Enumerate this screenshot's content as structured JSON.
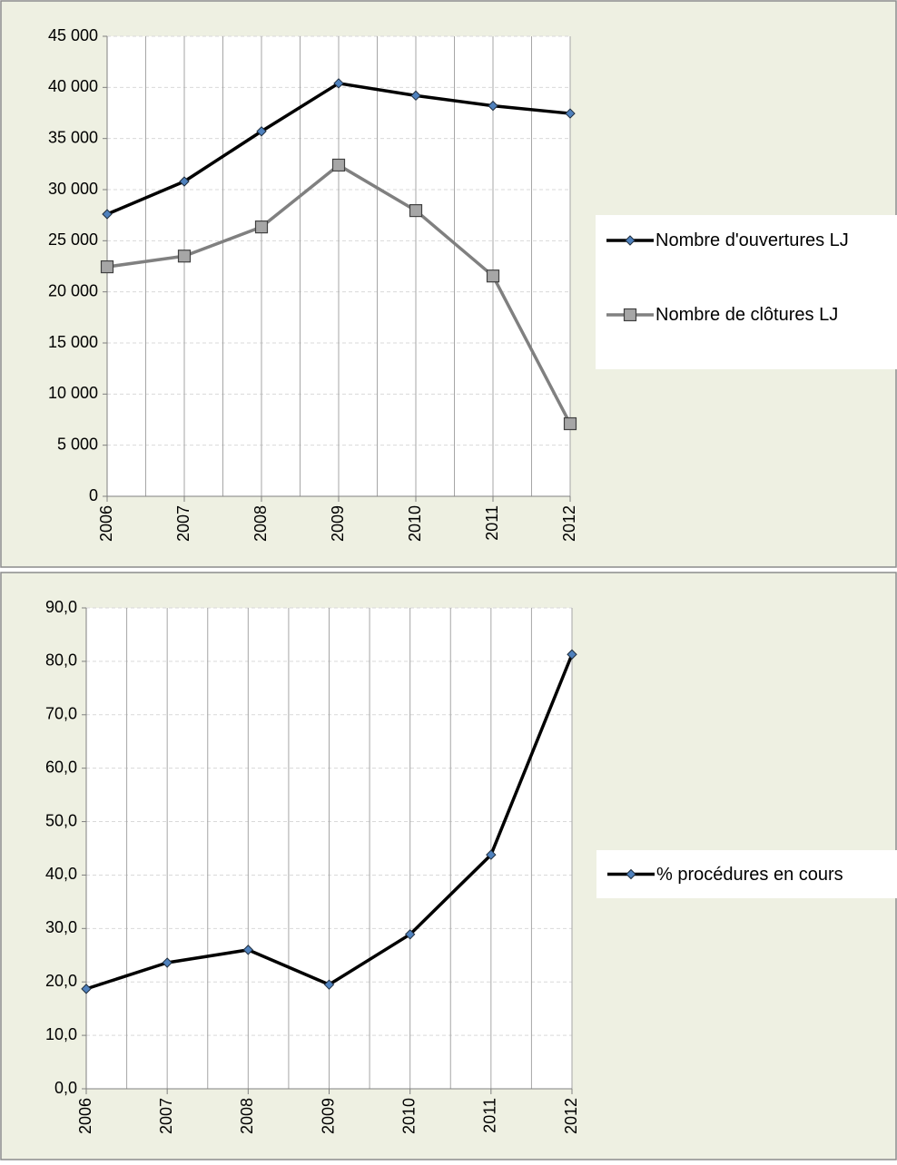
{
  "chart_data": [
    {
      "type": "line",
      "categories": [
        "2006",
        "2007",
        "2008",
        "2009",
        "2010",
        "2011",
        "2012"
      ],
      "series": [
        {
          "name": "Nombre d'ouvertures LJ",
          "color": "#000000",
          "marker": "diamond",
          "values": [
            27600,
            30800,
            35700,
            40400,
            39200,
            38200,
            37450
          ]
        },
        {
          "name": "Nombre de clôtures LJ",
          "color": "#808080",
          "marker": "square",
          "values": [
            22450,
            23500,
            26350,
            32400,
            27950,
            21550,
            7100
          ]
        }
      ],
      "ylim": [
        0,
        45000
      ],
      "yticks": [
        0,
        {
          "value": 5000,
          "label": "5 000"
        },
        {
          "value": 10000,
          "label": "10 000"
        },
        {
          "value": 15000,
          "label": "15 000"
        },
        {
          "value": 20000,
          "label": "20 000"
        },
        {
          "value": 25000,
          "label": "25 000"
        },
        {
          "value": 30000,
          "label": "30 000"
        },
        {
          "value": 35000,
          "label": "35 000"
        },
        {
          "value": 40000,
          "label": "40 000"
        },
        {
          "value": 45000,
          "label": "45 000"
        }
      ],
      "grid": true,
      "legend": "right"
    },
    {
      "type": "line",
      "categories": [
        "2006",
        "2007",
        "2008",
        "2009",
        "2010",
        "2011",
        "2012"
      ],
      "series": [
        {
          "name": "% procédures en cours",
          "color": "#000000",
          "marker": "diamond",
          "values": [
            18.7,
            23.6,
            26.0,
            19.5,
            28.9,
            43.8,
            81.3
          ]
        }
      ],
      "ylim": [
        0,
        90
      ],
      "yticks": [
        {
          "value": 0,
          "label": "0,0"
        },
        {
          "value": 10,
          "label": "10,0"
        },
        {
          "value": 20,
          "label": "20,0"
        },
        {
          "value": 30,
          "label": "30,0"
        },
        {
          "value": 40,
          "label": "40,0"
        },
        {
          "value": 50,
          "label": "50,0"
        },
        {
          "value": 60,
          "label": "60,0"
        },
        {
          "value": 70,
          "label": "70,0"
        },
        {
          "value": 80,
          "label": "80,0"
        },
        {
          "value": 90,
          "label": "90,0"
        }
      ],
      "grid": true,
      "legend": "right"
    }
  ]
}
